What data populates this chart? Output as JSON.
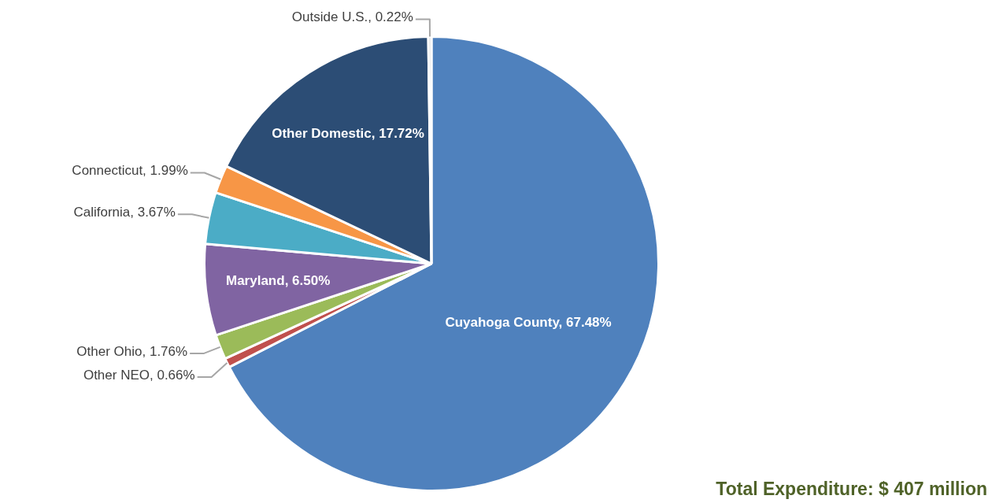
{
  "chart_data": {
    "type": "pie",
    "categories": [
      "Cuyahoga County",
      "Other NEO",
      "Other Ohio",
      "Maryland",
      "California",
      "Connecticut",
      "Other Domestic",
      "Outside U.S."
    ],
    "values": [
      67.48,
      0.66,
      1.76,
      6.5,
      3.67,
      1.99,
      17.72,
      0.22
    ],
    "colors": [
      "#4f81bd",
      "#c0504d",
      "#9bbb59",
      "#8064a2",
      "#4bacc6",
      "#f79646",
      "#2c4d75",
      "#d9d9d9"
    ],
    "value_labels": [
      "67.48%",
      "0.66%",
      "1.76%",
      "6.50%",
      "3.67%",
      "1.99%",
      "17.72%",
      "0.22%"
    ],
    "legend": false,
    "annotations": [
      "Total Expenditure: $ 407 million"
    ]
  }
}
